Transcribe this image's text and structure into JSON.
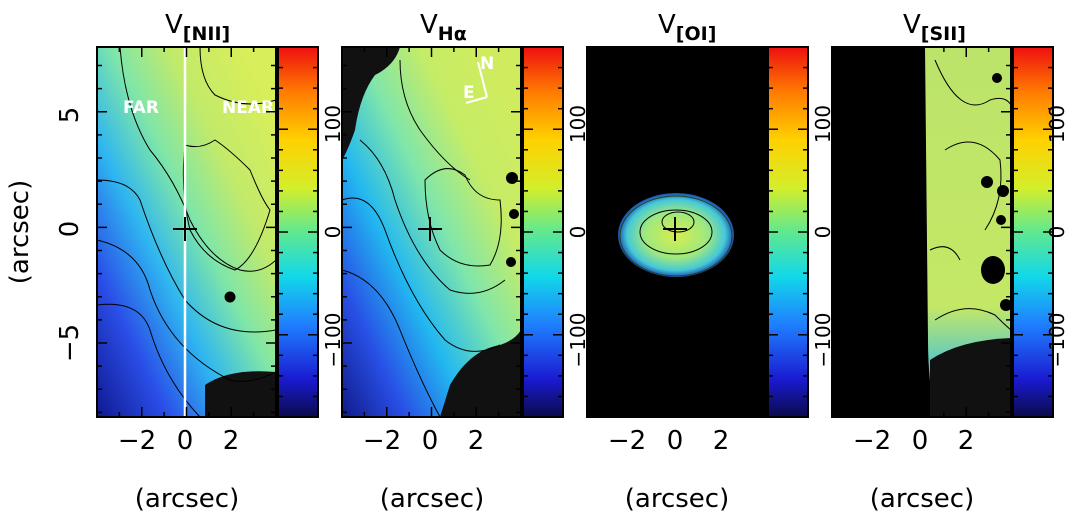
{
  "chart_data": [
    {
      "type": "heatmap",
      "title_main": "V",
      "title_sub": "[NII]",
      "xlabel": "(arcsec)",
      "ylabel": "(arcsec)",
      "xlim": [
        -4,
        4
      ],
      "ylim": [
        -8.2,
        7.8
      ],
      "xticks": [
        -2,
        0,
        2
      ],
      "xtick_labels": [
        "−2",
        "0",
        "2"
      ],
      "yticks": [
        -5,
        0,
        5
      ],
      "ytick_labels": [
        "−5",
        "0",
        "5"
      ],
      "colorbar": {
        "range": [
          -180,
          180
        ],
        "ticks": [
          -100,
          0,
          100
        ],
        "tick_labels": [
          "−100",
          "0",
          "100"
        ]
      },
      "center": [
        0,
        0
      ],
      "annotations": [
        {
          "text": "FAR",
          "x": -2.6,
          "y": 5
        },
        {
          "text": "NEAR",
          "x": 2.4,
          "y": 5
        }
      ],
      "divider_x": 0
    },
    {
      "type": "heatmap",
      "title_main": "V",
      "title_sub": "Hα",
      "xlabel": "(arcsec)",
      "xlim": [
        -4,
        4
      ],
      "ylim": [
        -8.2,
        7.8
      ],
      "xticks": [
        -2,
        0,
        2
      ],
      "xtick_labels": [
        "−2",
        "0",
        "2"
      ],
      "colorbar": {
        "range": [
          -180,
          180
        ],
        "ticks": [
          -100,
          0,
          100
        ],
        "tick_labels": [
          "−100",
          "0",
          "100"
        ]
      },
      "center": [
        0,
        0
      ],
      "compass": {
        "north": "N",
        "east": "E"
      }
    },
    {
      "type": "heatmap",
      "title_main": "V",
      "title_sub": "[OI]",
      "xlabel": "(arcsec)",
      "xlim": [
        -4,
        4
      ],
      "ylim": [
        -8.2,
        7.8
      ],
      "xticks": [
        -2,
        0,
        2
      ],
      "xtick_labels": [
        "−2",
        "0",
        "2"
      ],
      "colorbar": {
        "range": [
          -180,
          180
        ],
        "ticks": [
          -100,
          0,
          100
        ],
        "tick_labels": [
          "−100",
          "0",
          "100"
        ]
      },
      "center": [
        0,
        0
      ]
    },
    {
      "type": "heatmap",
      "title_main": "V",
      "title_sub": "[SII]",
      "xlabel": "(arcsec)",
      "xlim": [
        -4,
        4
      ],
      "ylim": [
        -8.2,
        7.8
      ],
      "xticks": [
        -2,
        0,
        2
      ],
      "xtick_labels": [
        "−2",
        "0",
        "2"
      ],
      "colorbar": {
        "range": [
          -180,
          180
        ],
        "ticks": [
          -100,
          0,
          100
        ],
        "tick_labels": [
          "−100",
          "0",
          "100"
        ]
      }
    }
  ]
}
